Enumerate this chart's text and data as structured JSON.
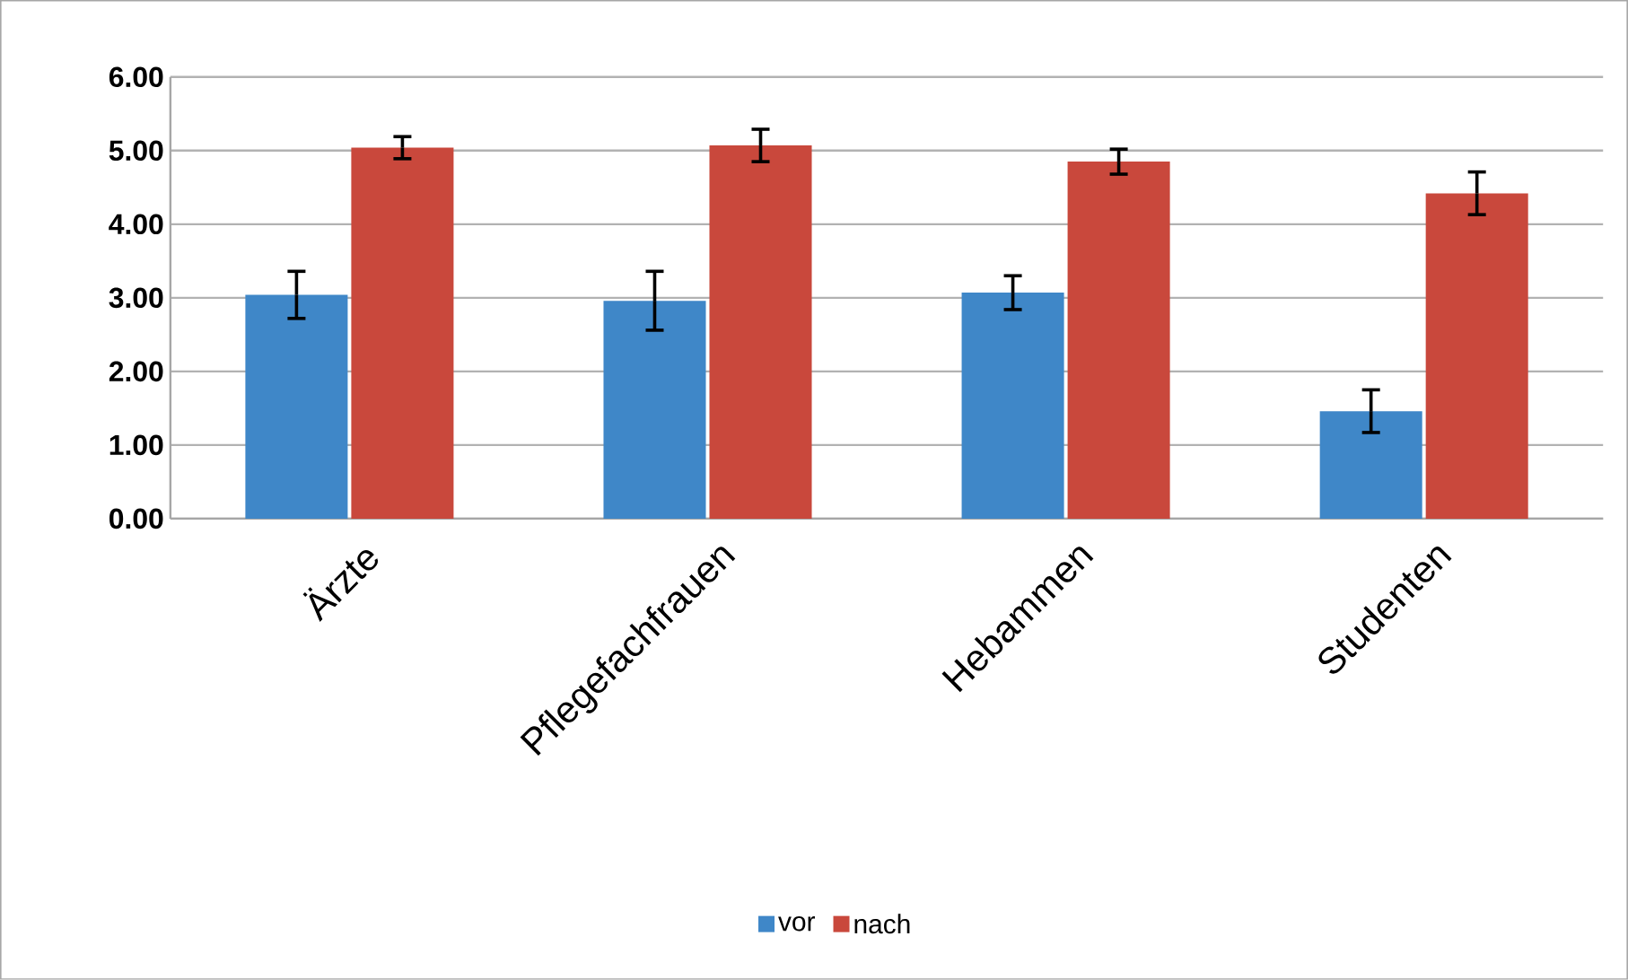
{
  "chart_data": {
    "type": "bar",
    "categories": [
      "Ärzte",
      "Pflegefachfrauen",
      "Hebammen",
      "Studenten"
    ],
    "series": [
      {
        "name": "vor",
        "color": "#3f87c8",
        "values": [
          3.04,
          2.96,
          3.07,
          1.46
        ],
        "errors": [
          0.32,
          0.4,
          0.23,
          0.29
        ]
      },
      {
        "name": "nach",
        "color": "#c9483c",
        "values": [
          5.04,
          5.07,
          4.85,
          4.42
        ],
        "errors": [
          0.15,
          0.22,
          0.17,
          0.29
        ]
      }
    ],
    "ylim": [
      0,
      6
    ],
    "yticks": [
      {
        "value": 0,
        "label": "0.00"
      },
      {
        "value": 1,
        "label": "1.00"
      },
      {
        "value": 2,
        "label": "2.00"
      },
      {
        "value": 3,
        "label": "3.00"
      },
      {
        "value": 4,
        "label": "4.00"
      },
      {
        "value": 5,
        "label": "5.00"
      },
      {
        "value": 6,
        "label": "6.00"
      }
    ],
    "grid": "y",
    "legend": "bottom"
  }
}
